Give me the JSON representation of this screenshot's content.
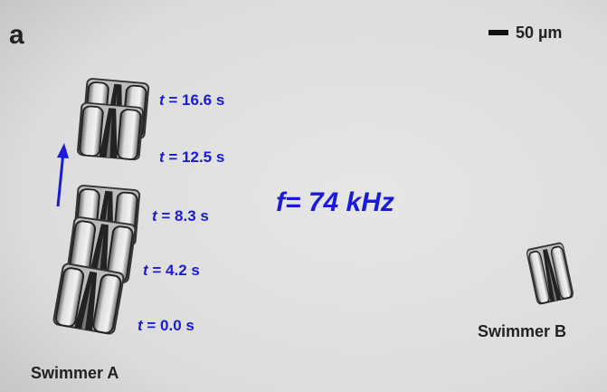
{
  "panel_label": "a",
  "scale_bar": "50 µm",
  "frequency": "f= 74 kHz",
  "time_labels": [
    {
      "symbol": "t",
      "text": " = 16.6 s"
    },
    {
      "symbol": "t",
      "text": " = 12.5 s"
    },
    {
      "symbol": "t",
      "text": " = 8.3 s"
    },
    {
      "symbol": "t",
      "text": " = 4.2 s"
    },
    {
      "symbol": "t",
      "text": " = 0.0 s"
    }
  ],
  "swimmers": [
    "Swimmer A",
    "Swimmer B"
  ]
}
